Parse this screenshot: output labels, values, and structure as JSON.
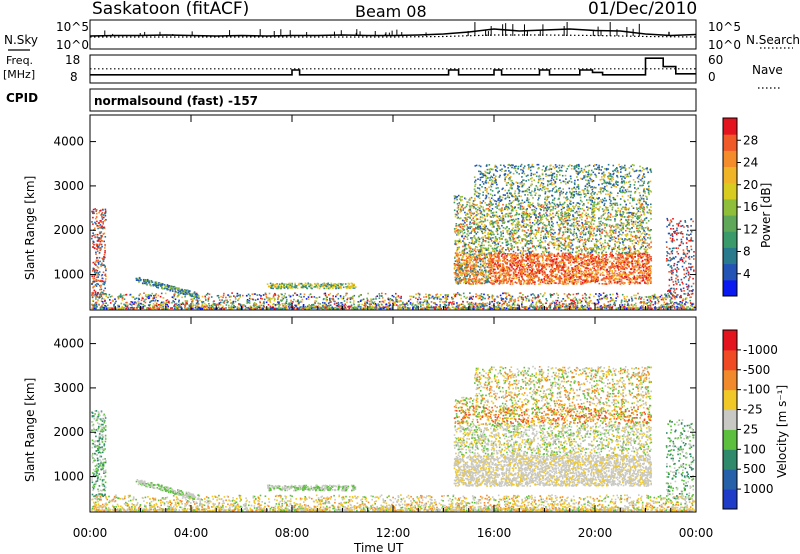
{
  "header": {
    "station": "Saskatoon (fitACF)",
    "beam": "Beam 08",
    "date": "01/Dec/2010"
  },
  "side_labels": {
    "nsky": "N.Sky",
    "freq_line1": "Freq.",
    "freq_line2": "[MHz]",
    "cpid": "CPID",
    "nsearch": "N.Search",
    "nave": "Nave"
  },
  "cpid_text": "normalsound (fast) -157",
  "chart_data": [
    {
      "type": "line",
      "name": "nsky-nsearch-panel",
      "y_left_ticks": [
        "10^5",
        "10^0"
      ],
      "y_right_ticks": [
        "10^5",
        "10^0"
      ],
      "series": [
        {
          "name": "N.Sky",
          "style": "solid",
          "x": [
            0,
            1,
            2,
            3,
            4,
            5,
            6,
            7,
            8,
            9,
            10,
            11,
            12,
            13,
            14,
            15,
            16,
            17,
            18,
            19,
            20,
            21,
            22,
            23,
            24
          ],
          "y": [
            2.2,
            2.3,
            2.3,
            2.4,
            2.3,
            2.2,
            2.3,
            2.2,
            2.3,
            2.3,
            2.4,
            2.3,
            2.3,
            2.4,
            2.6,
            3.0,
            3.6,
            3.2,
            3.4,
            3.6,
            3.3,
            3.2,
            2.6,
            2.3,
            2.5
          ]
        },
        {
          "name": "N.Search",
          "style": "dotted",
          "x": [
            0,
            2,
            4,
            6,
            8,
            10,
            12,
            14,
            16,
            18,
            20,
            22,
            24
          ],
          "y": [
            2.0,
            2.0,
            2.0,
            2.0,
            2.0,
            2.0,
            2.0,
            2.1,
            2.4,
            2.4,
            2.3,
            2.1,
            2.0
          ]
        }
      ]
    },
    {
      "type": "line",
      "name": "freq-nave-panel",
      "y_left_ticks": [
        "18",
        "8"
      ],
      "y_right_ticks": [
        "60",
        "0"
      ],
      "ylim_left": [
        8,
        18
      ],
      "series": [
        {
          "name": "Freq.",
          "style": "solid",
          "x": [
            0,
            8.0,
            8.0,
            8.3,
            8.3,
            14.2,
            14.2,
            14.6,
            14.6,
            16.0,
            16.0,
            16.3,
            16.3,
            17.8,
            17.8,
            18.2,
            18.2,
            19.4,
            19.4,
            19.9,
            19.9,
            20.3,
            20.3,
            22.0,
            22.0,
            22.7,
            22.7,
            23.2,
            23.2,
            24
          ],
          "y": [
            10.6,
            10.6,
            12.6,
            12.6,
            10.6,
            10.6,
            12.6,
            12.6,
            10.6,
            10.6,
            12.6,
            12.6,
            10.6,
            10.6,
            12.6,
            12.6,
            10.6,
            10.6,
            12.6,
            12.6,
            11.6,
            11.6,
            10.6,
            10.6,
            17.5,
            17.5,
            14.0,
            14.0,
            11.0,
            11.0
          ]
        },
        {
          "name": "Nave",
          "style": "dotted",
          "x": [
            0,
            24
          ],
          "y": [
            13.1,
            13.1
          ]
        }
      ]
    },
    {
      "type": "heatmap",
      "name": "power-panel",
      "ylabel": "Slant Range [km]",
      "y_ticks": [
        1000,
        2000,
        3000,
        4000
      ],
      "ylim": [
        200,
        4600
      ],
      "x_ticks": [
        "00:00",
        "04:00",
        "08:00",
        "12:00",
        "16:00",
        "20:00",
        "00:00"
      ],
      "xlim_hours": [
        0,
        24
      ],
      "colorbar": {
        "label": "Power [dB]",
        "tick_labels": [
          "4",
          "8",
          "12",
          "16",
          "20",
          "24",
          "28"
        ],
        "colors": [
          "#0a19f0",
          "#2453b6",
          "#2a7a8e",
          "#3a9a6a",
          "#5fa85a",
          "#8fbe3a",
          "#d8cc20",
          "#f0b428",
          "#f58c2c",
          "#f05a28",
          "#e4141e"
        ]
      }
    },
    {
      "type": "heatmap",
      "name": "velocity-panel",
      "ylabel": "Slant Range [km]",
      "xlabel": "Time UT",
      "y_ticks": [
        1000,
        2000,
        3000,
        4000
      ],
      "ylim": [
        200,
        4600
      ],
      "x_ticks": [
        "00:00",
        "04:00",
        "08:00",
        "12:00",
        "16:00",
        "20:00",
        "00:00"
      ],
      "xlim_hours": [
        0,
        24
      ],
      "colorbar": {
        "label": "Velocity [m s⁻¹]",
        "tick_labels": [
          "1000",
          "500",
          "100",
          "25",
          "-25",
          "-100",
          "-500",
          "-1000"
        ],
        "colors": [
          "#1e3cc8",
          "#2660a8",
          "#2e8a6a",
          "#5cc03e",
          "#c8c8c4",
          "#f0c828",
          "#f08a2c",
          "#f04a24",
          "#e4141e"
        ]
      }
    }
  ]
}
